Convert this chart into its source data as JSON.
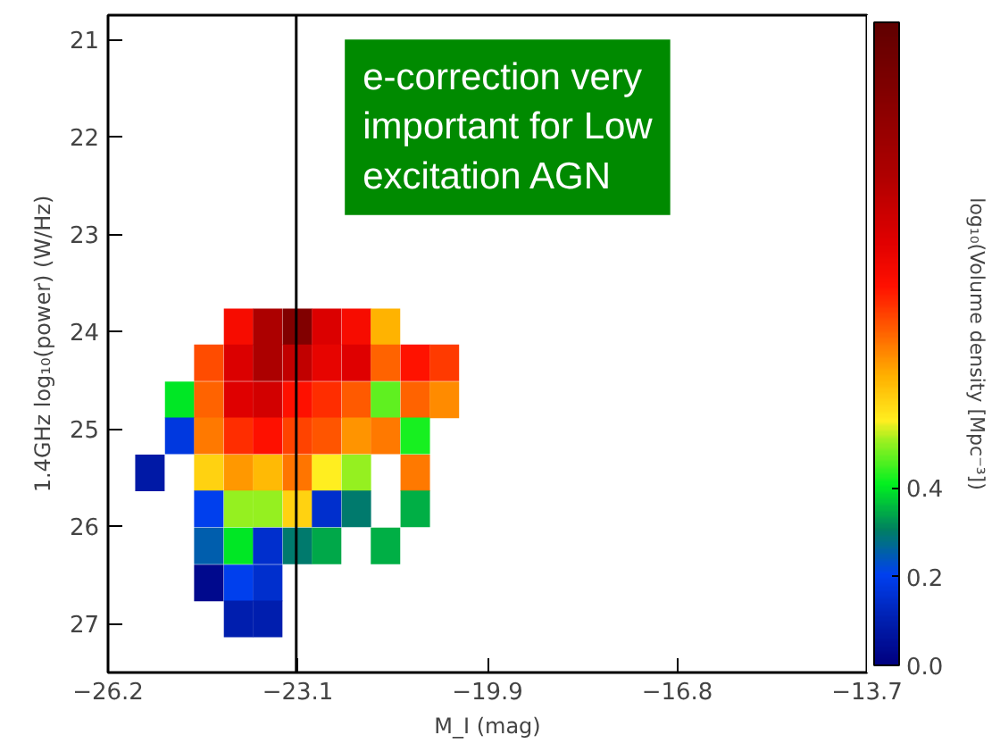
{
  "chart_data": {
    "type": "heatmap",
    "xlabel": "M_I (mag)",
    "ylabel": "1.4GHz log₁₀(power) (W/Hz)",
    "clabel": "log₁₀(Volume density [Mpc⁻³])",
    "x": [
      -25.51,
      -25.02,
      -24.54,
      -24.05,
      -23.57,
      -23.08,
      -22.6,
      -22.11,
      -21.63,
      -21.14,
      -20.66
    ],
    "y": [
      23.95,
      24.32,
      24.7,
      25.07,
      25.45,
      25.82,
      26.2,
      26.58,
      26.95
    ],
    "cells": [
      [
        null,
        null,
        null,
        0.88,
        1.12,
        1.3,
        0.97,
        0.88,
        0.65,
        null,
        null
      ],
      [
        null,
        null,
        0.78,
        0.97,
        1.12,
        1.05,
        0.93,
        0.96,
        0.75,
        0.85,
        0.8
      ],
      [
        null,
        0.4,
        0.75,
        0.96,
        1.0,
        0.86,
        0.82,
        0.76,
        0.47,
        0.75,
        0.7
      ],
      [
        null,
        0.18,
        0.72,
        0.82,
        0.86,
        0.79,
        0.77,
        0.69,
        0.72,
        0.42,
        null
      ],
      [
        0.08,
        null,
        0.6,
        0.68,
        0.64,
        0.73,
        0.55,
        0.5,
        null,
        0.72,
        null
      ],
      [
        null,
        null,
        0.2,
        0.5,
        0.5,
        0.6,
        0.15,
        0.3,
        null,
        0.35,
        null
      ],
      [
        null,
        null,
        0.25,
        0.4,
        0.15,
        0.3,
        0.34,
        null,
        0.35,
        null,
        null
      ],
      [
        null,
        null,
        0.03,
        0.2,
        0.15,
        null,
        null,
        null,
        null,
        null,
        null
      ],
      [
        null,
        null,
        null,
        0.1,
        0.1,
        null,
        null,
        null,
        null,
        null,
        null
      ]
    ],
    "xlim": [
      -26.2,
      -13.7
    ],
    "xticks": [
      {
        "value": -26.2,
        "label": "−26.2"
      },
      {
        "value": -23.075,
        "label": "−23.1"
      },
      {
        "value": -19.95,
        "label": "−19.9"
      },
      {
        "value": -16.825,
        "label": "−16.8"
      },
      {
        "value": -13.7,
        "label": "−13.7"
      }
    ],
    "ylim": [
      27.5,
      20.75
    ],
    "yticks": [
      21,
      22,
      23,
      24,
      25,
      26,
      27
    ],
    "clim": [
      0.0,
      1.45
    ],
    "cticks": [
      {
        "value": 0.0,
        "label": "0.0"
      },
      {
        "value": 0.2,
        "label": "0.2"
      },
      {
        "value": 0.4,
        "label": "0.4"
      }
    ],
    "ref_lines": [
      {
        "axis": "x",
        "value": -23.1,
        "color": "#000000"
      }
    ],
    "annotations": [
      "e-correction very important for Low excitation AGN"
    ],
    "grid": false
  }
}
